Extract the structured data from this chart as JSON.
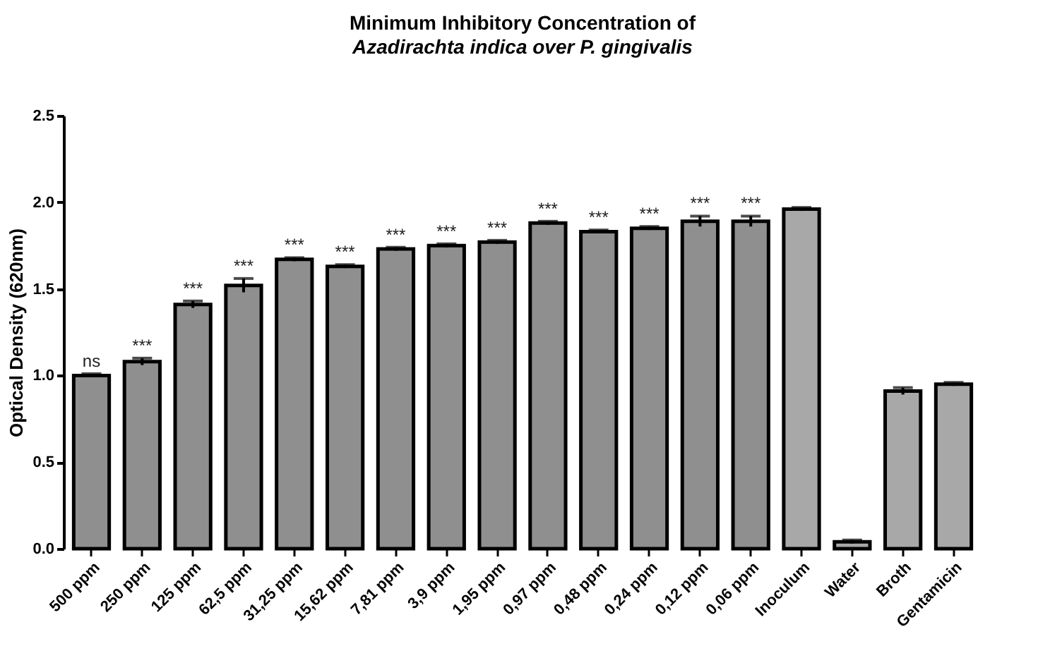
{
  "chart_data": {
    "type": "bar",
    "title": "Minimum Inhibitory Concentration of",
    "subtitle": "Azadirachta indica over P. gingivalis",
    "ylabel": "Optical Density (620nm)",
    "categories": [
      "500 ppm",
      "250 ppm",
      "125 ppm",
      "62,5 ppm",
      "31,25 ppm",
      "15,62 ppm",
      "7,81 ppm",
      "3,9 ppm",
      "1,95 ppm",
      "0,97 ppm",
      "0,48 ppm",
      "0,24 ppm",
      "0,12 ppm",
      "0,06 ppm",
      "Inoculum",
      "Water",
      "Broth",
      "Gentamicin"
    ],
    "values": [
      1.0,
      1.08,
      1.41,
      1.52,
      1.67,
      1.63,
      1.73,
      1.75,
      1.77,
      1.88,
      1.83,
      1.85,
      1.89,
      1.89,
      1.96,
      0.04,
      0.91,
      0.95
    ],
    "errors": [
      0.01,
      0.02,
      0.02,
      0.04,
      0.01,
      0.01,
      0.01,
      0.01,
      0.01,
      0.01,
      0.01,
      0.01,
      0.03,
      0.03,
      0.01,
      0.01,
      0.02,
      0.01
    ],
    "colors": [
      "#8f8f8f",
      "#8f8f8f",
      "#8f8f8f",
      "#8f8f8f",
      "#8f8f8f",
      "#8f8f8f",
      "#8f8f8f",
      "#8f8f8f",
      "#8f8f8f",
      "#8f8f8f",
      "#8f8f8f",
      "#8f8f8f",
      "#8f8f8f",
      "#8f8f8f",
      "#a8a8a8",
      "#a8a8a8",
      "#a8a8a8",
      "#a8a8a8"
    ],
    "ylim": [
      0,
      2.5
    ],
    "yticks": [
      {
        "value": 0,
        "label": "0.0"
      },
      0.5,
      {
        "value": 1,
        "label": "1.0"
      },
      1.5,
      {
        "value": 2,
        "label": "2.0"
      },
      2.5
    ],
    "annotations": [
      {
        "text": "ns",
        "x": "500 ppm",
        "y": 1.01
      },
      {
        "text": "***",
        "x": "250 ppm",
        "y": 1.1
      },
      {
        "text": "***",
        "x": "125 ppm",
        "y": 1.43
      },
      {
        "text": "***",
        "x": "62,5 ppm",
        "y": 1.56
      },
      {
        "text": "***",
        "x": "31,25 ppm",
        "y": 1.68
      },
      {
        "text": "***",
        "x": "15,62 ppm",
        "y": 1.64
      },
      {
        "text": "***",
        "x": "7,81 ppm",
        "y": 1.74
      },
      {
        "text": "***",
        "x": "3,9 ppm",
        "y": 1.76
      },
      {
        "text": "***",
        "x": "1,95 ppm",
        "y": 1.78
      },
      {
        "text": "***",
        "x": "0,97 ppm",
        "y": 1.89
      },
      {
        "text": "***",
        "x": "0,48 ppm",
        "y": 1.84
      },
      {
        "text": "***",
        "x": "0,24 ppm",
        "y": 1.86
      },
      {
        "text": "***",
        "x": "0,12 ppm",
        "y": 1.92
      },
      {
        "text": "***",
        "x": "0,06 ppm",
        "y": 1.92
      }
    ]
  }
}
